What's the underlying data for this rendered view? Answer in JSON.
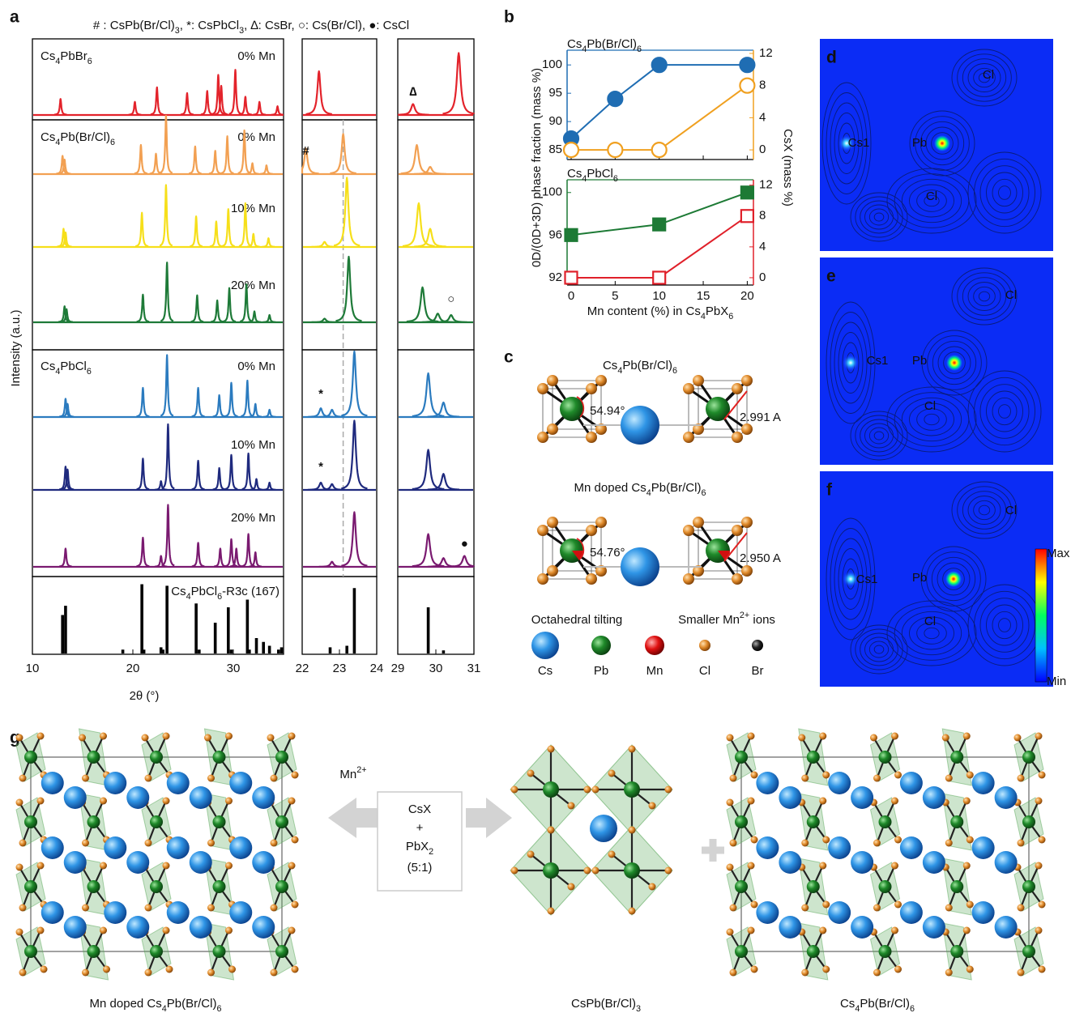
{
  "panel_a": {
    "label": "a",
    "legend": "# : CsPb(Br/Cl)3, *: CsPbCl3, ∆: CsBr, ○: Cs(Br/Cl), ●: CsCl",
    "ylabel": "Intensity (a.u.)",
    "xlabel": "2θ (°)",
    "windows": [
      {
        "xlim": [
          10,
          35
        ],
        "xticks": [
          10,
          20,
          30
        ]
      },
      {
        "xlim": [
          22,
          24
        ],
        "xticks": [
          22,
          23,
          24
        ]
      },
      {
        "xlim": [
          29,
          31
        ],
        "xticks": [
          29,
          30,
          31
        ]
      }
    ],
    "reference_line": 23.1,
    "patterns": [
      {
        "sample": "Cs4PbBr6",
        "doping": "0% Mn",
        "color": "#e3232b",
        "peaks": [
          {
            "x": [
              12.8,
              20.2,
              22.4,
              25.4,
              27.4,
              28.5,
              28.8,
              30.2,
              31.2,
              32.6,
              34.4
            ],
            "values": [
              0.22,
              0.18,
              0.38,
              0.3,
              0.33,
              0.55,
              0.4,
              0.62,
              0.25,
              0.18,
              0.12
            ]
          },
          {
            "x": [
              22.45
            ],
            "values": [
              0.6
            ]
          },
          {
            "x": [
              29.4,
              30.6
            ],
            "values": [
              0.15,
              0.85
            ]
          }
        ],
        "annotations": [
          {
            "text": "∆",
            "x": 29.4
          }
        ]
      },
      {
        "sample": "Cs4Pb(Br/Cl)6",
        "doping": "0% Mn",
        "color": "#f2a052",
        "peaks": [
          {
            "x": [
              13.0,
              13.2,
              20.8,
              22.3,
              23.3,
              26.2,
              28.2,
              29.4,
              31.1,
              31.9,
              33.3
            ],
            "values": [
              0.25,
              0.2,
              0.4,
              0.28,
              0.8,
              0.38,
              0.32,
              0.52,
              0.6,
              0.15,
              0.12
            ]
          },
          {
            "x": [
              22.1,
              23.1
            ],
            "values": [
              0.35,
              0.55
            ]
          },
          {
            "x": [
              29.5,
              29.85
            ],
            "values": [
              0.4,
              0.1
            ]
          }
        ],
        "annotations": [
          {
            "text": "#",
            "x": 22.1
          }
        ]
      },
      {
        "doping": "10% Mn",
        "color": "#f6df1a",
        "peaks": [
          {
            "x": [
              13.1,
              13.3,
              20.9,
              23.3,
              26.3,
              28.3,
              29.5,
              31.2,
              32.0,
              33.5
            ],
            "values": [
              0.25,
              0.2,
              0.47,
              0.85,
              0.42,
              0.35,
              0.52,
              0.6,
              0.18,
              0.12
            ]
          },
          {
            "x": [
              22.6,
              23.2
            ],
            "values": [
              0.07,
              0.95
            ]
          },
          {
            "x": [
              29.55,
              29.85
            ],
            "values": [
              0.6,
              0.25
            ]
          }
        ]
      },
      {
        "doping": "20% Mn",
        "color": "#1e7a38",
        "peaks": [
          {
            "x": [
              13.2,
              13.4,
              21.0,
              23.4,
              26.4,
              28.4,
              29.6,
              31.3,
              32.1,
              33.6
            ],
            "values": [
              0.22,
              0.18,
              0.38,
              0.82,
              0.37,
              0.3,
              0.47,
              0.52,
              0.15,
              0.1
            ]
          },
          {
            "x": [
              22.6,
              23.25
            ],
            "values": [
              0.05,
              0.9
            ]
          },
          {
            "x": [
              29.65,
              30.05,
              30.4
            ],
            "values": [
              0.48,
              0.12,
              0.1
            ]
          }
        ],
        "annotations": [
          {
            "text": "○",
            "x": 30.4
          }
        ]
      },
      {
        "sample": "Cs4PbCl6",
        "doping": "0% Mn",
        "color": "#2b7bbf",
        "peaks": [
          {
            "x": [
              13.3,
              13.5,
              21.0,
              23.4,
              26.5,
              28.6,
              29.8,
              31.4,
              32.2,
              33.6
            ],
            "values": [
              0.25,
              0.18,
              0.4,
              0.85,
              0.4,
              0.3,
              0.47,
              0.5,
              0.18,
              0.1
            ]
          },
          {
            "x": [
              22.5,
              22.8,
              23.4
            ],
            "values": [
              0.12,
              0.1,
              0.9
            ]
          },
          {
            "x": [
              29.8,
              30.2
            ],
            "values": [
              0.6,
              0.2
            ]
          }
        ],
        "annotations": [
          {
            "text": "*",
            "x": 22.5
          }
        ]
      },
      {
        "doping": "10% Mn",
        "color": "#1f2a7e",
        "peaks": [
          {
            "x": [
              13.3,
              13.5,
              21.0,
              22.8,
              23.5,
              26.5,
              28.6,
              29.8,
              31.5,
              32.3,
              33.6
            ],
            "values": [
              0.32,
              0.28,
              0.43,
              0.12,
              0.9,
              0.4,
              0.3,
              0.48,
              0.5,
              0.15,
              0.1
            ]
          },
          {
            "x": [
              22.5,
              22.8,
              23.4
            ],
            "values": [
              0.1,
              0.08,
              0.95
            ]
          },
          {
            "x": [
              29.8,
              30.2
            ],
            "values": [
              0.55,
              0.22
            ]
          }
        ],
        "annotations": [
          {
            "text": "*",
            "x": 22.5
          }
        ]
      },
      {
        "doping": "20% Mn",
        "color": "#7a1a70",
        "peaks": [
          {
            "x": [
              13.3,
              21.0,
              22.8,
              23.5,
              26.5,
              28.7,
              29.8,
              30.3,
              31.5,
              32.2
            ],
            "values": [
              0.25,
              0.4,
              0.15,
              0.85,
              0.33,
              0.25,
              0.38,
              0.25,
              0.45,
              0.2
            ]
          },
          {
            "x": [
              22.8,
              23.4
            ],
            "values": [
              0.07,
              0.75
            ]
          },
          {
            "x": [
              29.8,
              30.2,
              30.75
            ],
            "values": [
              0.45,
              0.12,
              0.15
            ]
          }
        ],
        "annotations": [
          {
            "text": "●",
            "x": 30.75
          }
        ]
      }
    ],
    "reference": {
      "label": "Cs4PbCl6-R3c (167)",
      "color": "#000000",
      "peaks": [
        {
          "x": [
            13.0,
            13.3,
            19.0,
            20.9,
            21.1,
            22.8,
            23.0,
            23.4,
            26.3,
            26.6,
            28.2,
            29.5,
            29.8,
            31.4,
            31.6,
            32.3,
            33.0,
            33.6,
            34.5,
            34.8
          ],
          "values": [
            0.5,
            0.62,
            0.05,
            0.9,
            0.05,
            0.08,
            0.05,
            0.88,
            0.65,
            0.05,
            0.4,
            0.6,
            0.05,
            0.7,
            0.05,
            0.2,
            0.15,
            0.1,
            0.05,
            0.08
          ]
        },
        {
          "x": [
            22.75,
            23.2,
            23.4
          ],
          "values": [
            0.08,
            0.1,
            0.85
          ]
        },
        {
          "x": [
            29.8,
            30.2
          ],
          "values": [
            0.6,
            0.04
          ]
        }
      ]
    }
  },
  "panel_b": {
    "label": "b",
    "ylabel": "0D/(0D+3D) phase fraction (mass %)",
    "y2label": "CsX (mass %)",
    "xlabel": "Mn content (%) in Cs4PbX6",
    "xlim": [
      -0.46,
      20.7
    ],
    "xticks": [
      0,
      5,
      10,
      15,
      20
    ],
    "charts": [
      {
        "type": "line",
        "title": "Cs4Pb(Br/Cl)6",
        "marker": "circle",
        "ylim": [
          83.3,
          102.6
        ],
        "yticks": [
          85,
          90,
          95,
          100
        ],
        "y2lim": [
          -1.2,
          12.4
        ],
        "y2ticks": [
          0,
          4,
          8,
          12
        ],
        "series": [
          {
            "color": "#1f6db3",
            "filled": true,
            "x": [
              0,
              5,
              10,
              20
            ],
            "values": [
              87,
              94,
              100,
              100
            ]
          },
          {
            "color": "#f0a020",
            "filled": false,
            "axis": "y2",
            "x": [
              0,
              5,
              10,
              20
            ],
            "values": [
              0,
              0,
              0,
              8
            ]
          }
        ]
      },
      {
        "type": "line",
        "title": "Cs4PbCl6",
        "marker": "square",
        "ylim": [
          91.3,
          101.2
        ],
        "yticks": [
          92,
          96,
          100
        ],
        "y2lim": [
          -0.95,
          12.7
        ],
        "y2ticks": [
          0,
          4,
          8,
          12
        ],
        "series": [
          {
            "color": "#1d7a35",
            "filled": true,
            "x": [
              0,
              10,
              20
            ],
            "values": [
              96,
              97,
              100
            ]
          },
          {
            "color": "#e0202a",
            "filled": false,
            "axis": "y2",
            "x": [
              0,
              10,
              20
            ],
            "values": [
              0,
              0,
              8
            ]
          }
        ]
      }
    ]
  },
  "panel_c": {
    "label": "c",
    "top_title": "Cs4Pb(Br/Cl)6",
    "top_angle": "54.94°",
    "top_distance": "2.991 A",
    "bottom_title": "Mn doped Cs4Pb(Br/Cl)6",
    "bottom_angle": "54.76°",
    "bottom_distance": "2.950 A",
    "caption_left": "Octahedral tilting",
    "caption_right": "Smaller Mn2+ ions",
    "legend": [
      "Cs",
      "Pb",
      "Mn",
      "Cl",
      "Br"
    ]
  },
  "panel_maps": [
    {
      "label": "d",
      "atoms": [
        "Cl",
        "Cs1",
        "Pb",
        "Cl"
      ]
    },
    {
      "label": "e",
      "atoms": [
        "Cl",
        "Cs1",
        "Pb",
        "Cl"
      ]
    },
    {
      "label": "f",
      "atoms": [
        "Cl",
        "Cs1",
        "Pb",
        "Cl"
      ]
    }
  ],
  "colorbar": [
    "Max",
    "Min"
  ],
  "panel_g": {
    "label": "g",
    "structures": [
      "Mn doped Cs4Pb(Br/Cl)6",
      "CsPb(Br/Cl)3",
      "Cs4Pb(Br/Cl)6"
    ],
    "dopant": "Mn2+",
    "reactants": [
      "CsX",
      "+",
      "PbX2",
      "(5:1)"
    ]
  }
}
